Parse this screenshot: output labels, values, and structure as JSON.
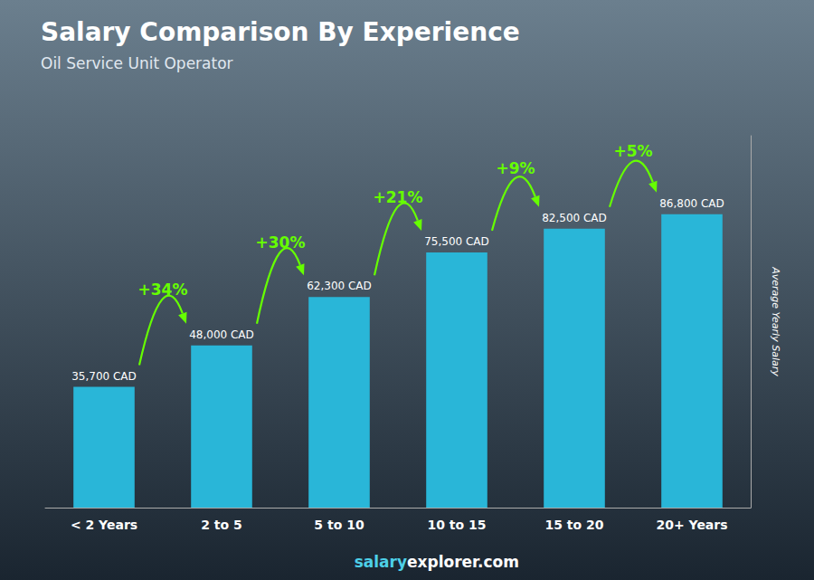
{
  "chart_data": {
    "type": "bar",
    "title": "Salary Comparison By Experience",
    "subtitle": "Oil Service Unit Operator",
    "ylabel": "Average Yearly Salary",
    "categories": [
      "< 2 Years",
      "2 to 5",
      "5 to 10",
      "10 to 15",
      "15 to 20",
      "20+ Years"
    ],
    "values": [
      35700,
      48000,
      62300,
      75500,
      82500,
      86800
    ],
    "value_labels": [
      "35,700 CAD",
      "48,000 CAD",
      "62,300 CAD",
      "75,500 CAD",
      "82,500 CAD",
      "86,800 CAD"
    ],
    "data_labels": true,
    "color": "#29b6d8",
    "ylim": [
      0,
      110000
    ],
    "tick_labels": "x",
    "grid": false,
    "annotations": [
      {
        "text": "+34%",
        "from": "< 2 Years",
        "to": "2 to 5",
        "color": "#66ff00"
      },
      {
        "text": "+30%",
        "from": "2 to 5",
        "to": "5 to 10",
        "color": "#66ff00"
      },
      {
        "text": "+21%",
        "from": "5 to 10",
        "to": "10 to 15",
        "color": "#66ff00"
      },
      {
        "text": "+9%",
        "from": "10 to 15",
        "to": "15 to 20",
        "color": "#66ff00"
      },
      {
        "text": "+5%",
        "from": "15 to 20",
        "to": "20+ Years",
        "color": "#66ff00"
      }
    ],
    "footer": [
      {
        "text": "salary",
        "color": "#4dd0e8"
      },
      {
        "text": "explorer.com",
        "color": "#ffffff"
      }
    ]
  }
}
